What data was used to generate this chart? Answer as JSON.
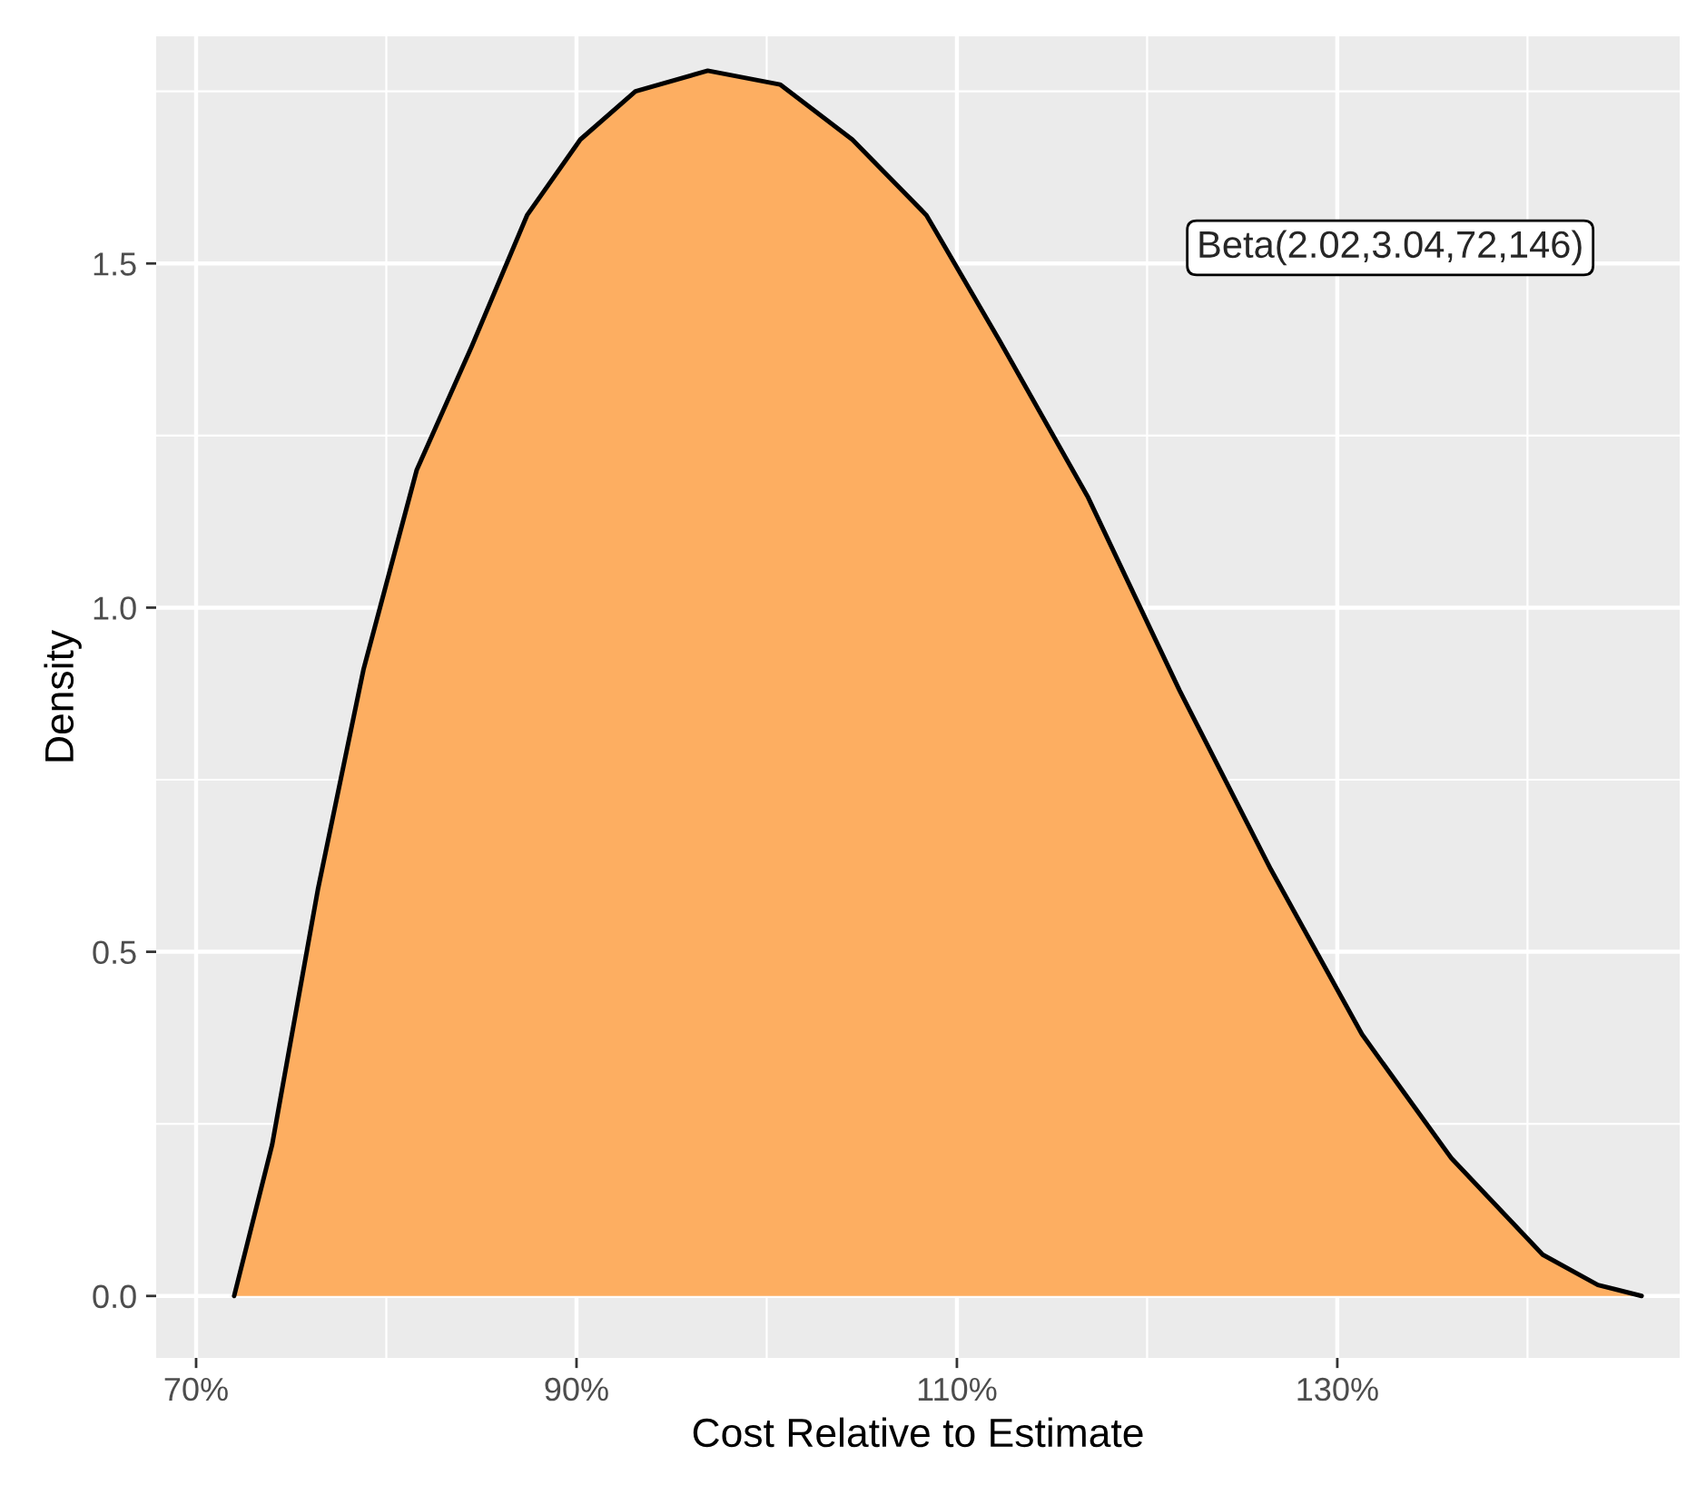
{
  "chart_data": {
    "type": "area",
    "xlabel": "Cost Relative to Estimate",
    "ylabel": "Density",
    "annotations": [
      "Beta(2.02,3.04,72,146)"
    ],
    "series": [
      {
        "color": "#fdae61",
        "x": [
          72,
          74,
          76.4,
          78.8,
          81.6,
          84.5,
          87.4,
          90.2,
          93.1,
          96.9,
          100.7,
          104.5,
          108.4,
          112.2,
          116.9,
          121.7,
          126.5,
          131.3,
          136,
          140.8,
          143.7,
          146
        ],
        "values": [
          0,
          0.22,
          0.59,
          0.91,
          1.2,
          1.38,
          1.57,
          1.68,
          1.75,
          1.78,
          1.76,
          1.68,
          1.57,
          1.39,
          1.16,
          0.88,
          0.62,
          0.38,
          0.2,
          0.06,
          0.016,
          0
        ]
      }
    ],
    "xlim": [
      67.9,
      148
    ],
    "xticks": [
      {
        "value": 70,
        "label": "70%"
      },
      {
        "value": 90,
        "label": "90%"
      },
      {
        "value": 110,
        "label": "110%"
      },
      {
        "value": 130,
        "label": "130%"
      }
    ],
    "ylim": [
      -0.09,
      1.83
    ],
    "yticks": [
      {
        "value": 0,
        "label": "0.0"
      },
      {
        "value": 0.5,
        "label": "0.5"
      },
      {
        "value": 1.0,
        "label": "1.0"
      },
      {
        "value": 1.5,
        "label": "1.5"
      }
    ],
    "grid": true
  }
}
